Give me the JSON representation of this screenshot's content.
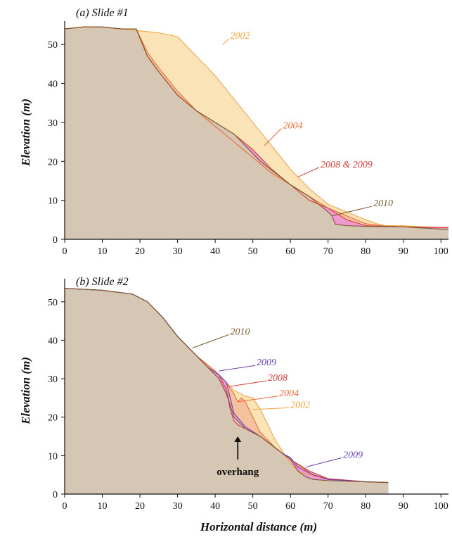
{
  "colors": {
    "ground": "#d6c6b4",
    "2002": "#f7a440",
    "2004": "#ef6a3a",
    "2008": "#d63a3a",
    "2009": "#6b3fb3",
    "2010": "#7a5a2e",
    "2008_2009_fill": "#ec9ad0"
  },
  "xlabel": "Horizontal distance (m)",
  "chart_data": [
    {
      "type": "area",
      "panel_label": "(a)   Slide #1",
      "ylabel": "Elevation (m)",
      "xlim": [
        0,
        102
      ],
      "ylim": [
        0,
        56
      ],
      "xticks": [
        0,
        10,
        20,
        30,
        40,
        50,
        60,
        70,
        80,
        90,
        100
      ],
      "yticks": [
        0,
        10,
        20,
        30,
        40,
        50
      ],
      "series": [
        {
          "name": "2002",
          "x": [
            0,
            5,
            10,
            15,
            20,
            25,
            30,
            35,
            40,
            45,
            50,
            55,
            60,
            65,
            70,
            75,
            80,
            83,
            85,
            90,
            95,
            102
          ],
          "y": [
            54,
            54.5,
            54.5,
            54,
            53.5,
            53,
            52,
            47,
            42,
            36,
            30,
            24,
            18,
            13,
            9,
            7,
            5,
            4,
            3.5,
            3.5,
            3.2,
            3
          ]
        },
        {
          "name": "2004",
          "x": [
            0,
            5,
            10,
            15,
            19,
            22,
            25,
            30,
            35,
            40,
            45,
            50,
            55,
            60,
            65,
            70,
            75,
            80,
            84,
            90,
            102
          ],
          "y": [
            54,
            54.5,
            54.5,
            54,
            54,
            48,
            44,
            38,
            33,
            29,
            25,
            21,
            17,
            14,
            11,
            8,
            6,
            4,
            3.5,
            3.2,
            3
          ]
        },
        {
          "name": "2008 & 2009",
          "x": [
            0,
            5,
            10,
            15,
            19,
            22,
            25,
            30,
            35,
            40,
            45,
            50,
            55,
            60,
            65,
            70,
            75,
            80,
            90,
            102
          ],
          "y": [
            54,
            54.5,
            54.5,
            54,
            54,
            47,
            43,
            37,
            33,
            30,
            27,
            23,
            18,
            14,
            10,
            8,
            5,
            3.5,
            3.2,
            3
          ]
        },
        {
          "name": "2010",
          "x": [
            0,
            5,
            10,
            15,
            19,
            22,
            25,
            30,
            35,
            40,
            45,
            48,
            52,
            56,
            60,
            65,
            70,
            71,
            72,
            75,
            80,
            90,
            102
          ],
          "y": [
            54,
            54.5,
            54.5,
            54,
            54,
            47,
            43,
            37,
            33,
            30,
            27,
            24,
            20,
            17,
            14,
            11,
            7,
            6,
            3.8,
            3.5,
            3.3,
            3.2,
            2.5
          ]
        }
      ],
      "annotations": [
        {
          "text": "2002",
          "color_key": "2002",
          "at": [
            42,
            50
          ],
          "text_at": [
            44,
            52
          ]
        },
        {
          "text": "2004",
          "color_key": "2004",
          "at": [
            53,
            24
          ],
          "text_at": [
            58,
            29
          ]
        },
        {
          "text": "2008 & 2009",
          "color_key": "2008",
          "at": [
            62,
            16
          ],
          "text_at": [
            68,
            19
          ]
        },
        {
          "text": "2010",
          "color_key": "2010",
          "at": [
            71,
            6
          ],
          "text_at": [
            82,
            9
          ]
        }
      ]
    },
    {
      "type": "area",
      "panel_label": "(b)   Slide #2",
      "ylabel": "Elevation (m)",
      "xlim": [
        0,
        102
      ],
      "ylim": [
        0,
        56
      ],
      "xticks": [
        0,
        10,
        20,
        30,
        40,
        50,
        60,
        70,
        80,
        90,
        100
      ],
      "yticks": [
        0,
        10,
        20,
        30,
        40,
        50
      ],
      "series": [
        {
          "name": "2002",
          "x": [
            0,
            10,
            18,
            22,
            26,
            30,
            35,
            40,
            43,
            45,
            47,
            48,
            50,
            52,
            54,
            56,
            58,
            60,
            62,
            65,
            70,
            75,
            80,
            86
          ],
          "y": [
            53.5,
            53,
            52,
            50,
            46,
            41,
            36,
            32,
            29,
            27,
            26,
            25.5,
            25,
            22,
            18,
            14,
            11,
            8,
            6,
            5,
            4,
            3.5,
            3.2,
            3
          ]
        },
        {
          "name": "2004",
          "x": [
            0,
            10,
            18,
            22,
            26,
            30,
            35,
            40,
            43,
            45,
            46,
            47,
            48,
            50,
            52,
            54,
            56,
            60,
            63,
            66,
            70,
            80,
            86
          ],
          "y": [
            53.5,
            53,
            52,
            50,
            46,
            41,
            36,
            32,
            29,
            26,
            24,
            25,
            24,
            20,
            16,
            14,
            12,
            9,
            7,
            5,
            4,
            3.2,
            3
          ]
        },
        {
          "name": "2008",
          "x": [
            0,
            10,
            18,
            22,
            26,
            30,
            35,
            38,
            41,
            43,
            44,
            45,
            46,
            48,
            52,
            56,
            60,
            65,
            70,
            80,
            86
          ],
          "y": [
            53.5,
            53,
            52,
            50,
            46,
            41,
            36,
            33,
            31,
            27,
            22,
            19,
            18,
            17,
            15,
            12,
            9,
            6,
            4,
            3.2,
            3
          ]
        },
        {
          "name": "2009",
          "x": [
            0,
            10,
            18,
            22,
            26,
            30,
            35,
            38,
            41,
            43,
            45,
            48,
            52,
            56,
            58,
            60,
            62,
            64,
            66,
            70,
            80,
            86
          ],
          "y": [
            53.5,
            53,
            52,
            50,
            46,
            41,
            36,
            33,
            31,
            29,
            21,
            17.5,
            15,
            12,
            10.5,
            9.5,
            7,
            6,
            5,
            3.8,
            3.2,
            3
          ]
        },
        {
          "name": "2010",
          "x": [
            0,
            10,
            18,
            22,
            26,
            30,
            35,
            38,
            41,
            43,
            45,
            48,
            52,
            56,
            60,
            62,
            64,
            66,
            70,
            80,
            86
          ],
          "y": [
            53.5,
            53,
            52,
            50,
            46,
            41,
            36,
            33,
            30,
            26,
            20,
            17,
            15,
            12,
            9,
            6,
            4.5,
            3.8,
            3.5,
            3.2,
            3
          ]
        }
      ],
      "annotations": [
        {
          "text": "2010",
          "color_key": "2010",
          "at": [
            34,
            38
          ],
          "text_at": [
            44,
            42
          ]
        },
        {
          "text": "2009",
          "color_key": "2009",
          "at": [
            41,
            32
          ],
          "text_at": [
            51,
            34
          ]
        },
        {
          "text": "2008",
          "color_key": "2008",
          "at": [
            44,
            28
          ],
          "text_at": [
            54,
            30
          ]
        },
        {
          "text": "2004",
          "color_key": "2004",
          "at": [
            46,
            24
          ],
          "text_at": [
            57,
            26
          ]
        },
        {
          "text": "2002",
          "color_key": "2002",
          "at": [
            50,
            22
          ],
          "text_at": [
            60,
            23
          ]
        },
        {
          "text": "2009",
          "color_key": "2009",
          "at": [
            64,
            7
          ],
          "text_at": [
            74,
            10
          ]
        }
      ],
      "callout": {
        "text": "overhang",
        "arrow_to": [
          46,
          15
        ],
        "arrow_from": [
          46,
          9
        ]
      }
    }
  ]
}
